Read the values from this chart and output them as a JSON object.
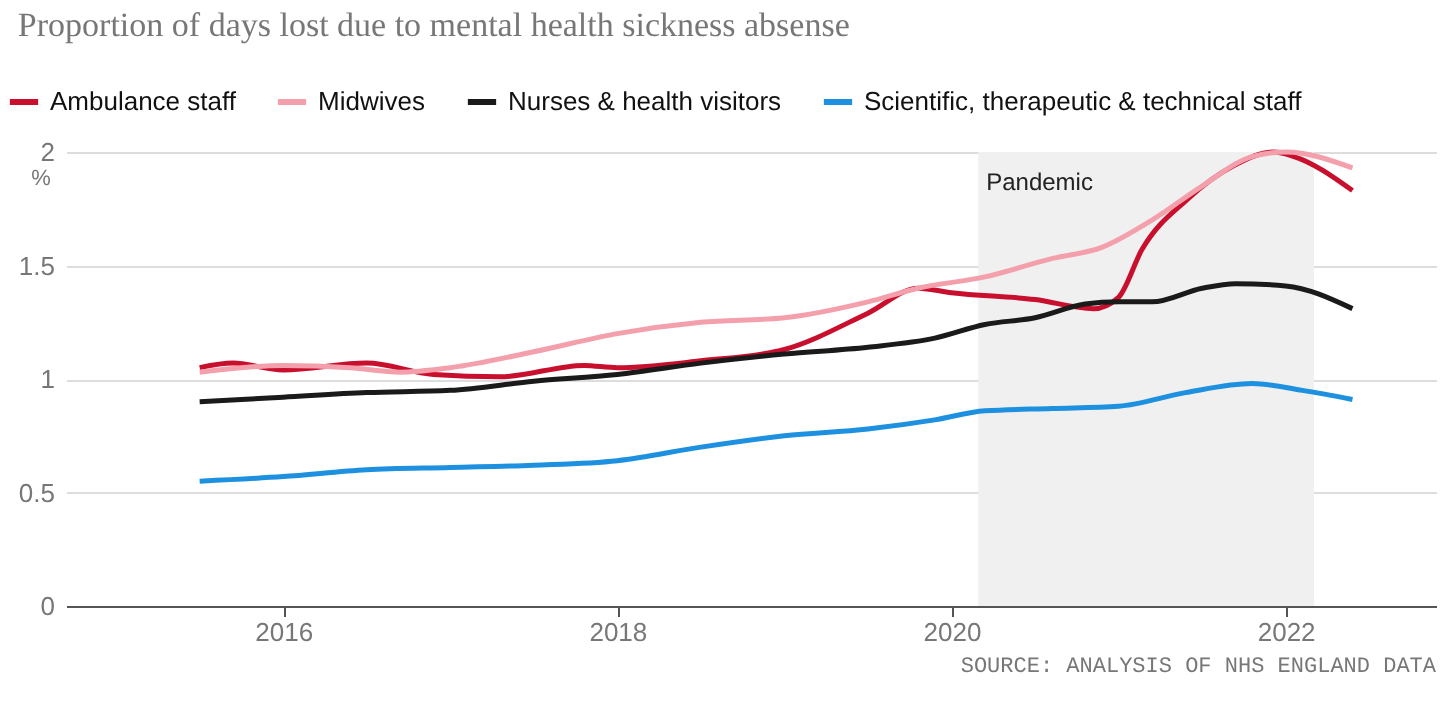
{
  "chart_data": {
    "type": "line",
    "title": "Proportion of days lost due to mental health sickness absense",
    "ylabel": "%",
    "xlim": [
      2014.7,
      2022.9
    ],
    "xticks": [
      2016,
      2018,
      2020,
      2022
    ],
    "ylim": [
      0,
      2
    ],
    "yticks": [
      0,
      0.5,
      1,
      1.5,
      2
    ],
    "grid": "y",
    "legend": "top left",
    "line_style": "solid",
    "marker": "none",
    "bands": [
      {
        "axis": "x",
        "from": 2020.16,
        "to": 2022.17,
        "label": "Pandemic",
        "color": "#f0f0f0"
      }
    ],
    "annotations": [
      "SOURCE: ANALYSIS OF NHS ENGLAND DATA"
    ],
    "series": [
      {
        "name": "Ambulance staff",
        "color": "#c8102e",
        "x": [
          2015.5,
          2015.7,
          2016,
          2016.5,
          2016.9,
          2017.3,
          2017.8,
          2018,
          2018.5,
          2019,
          2019.5,
          2019.8,
          2020,
          2020.5,
          2020.85,
          2021,
          2021.14,
          2021.41,
          2021.69,
          2021.93,
          2022.05,
          2022.4
        ],
        "values": [
          1.05,
          1.07,
          1.04,
          1.07,
          1.02,
          1.01,
          1.06,
          1.05,
          1.08,
          1.13,
          1.29,
          1.4,
          1.38,
          1.35,
          1.31,
          1.36,
          1.57,
          1.79,
          1.94,
          2.0,
          1.98,
          1.83
        ]
      },
      {
        "name": "Midwives",
        "color": "#f4a0ac",
        "x": [
          2015.5,
          2016,
          2016.4,
          2016.7,
          2017,
          2017.5,
          2018,
          2018.5,
          2019,
          2019.5,
          2019.8,
          2020.2,
          2020.6,
          2020.9,
          2021.2,
          2021.5,
          2021.8,
          2022,
          2022.4
        ],
        "values": [
          1.03,
          1.06,
          1.05,
          1.03,
          1.05,
          1.12,
          1.2,
          1.25,
          1.27,
          1.34,
          1.4,
          1.45,
          1.53,
          1.58,
          1.7,
          1.85,
          1.98,
          2.0,
          1.93
        ]
      },
      {
        "name": "Nurses & health visitors",
        "color": "#1a1a1a",
        "x": [
          2015.5,
          2016,
          2016.5,
          2017,
          2017.5,
          2018,
          2018.5,
          2019,
          2019.5,
          2019.9,
          2020.2,
          2020.5,
          2020.8,
          2021,
          2021.2,
          2021.5,
          2021.7,
          2022,
          2022.4
        ],
        "values": [
          0.9,
          0.92,
          0.94,
          0.95,
          0.99,
          1.02,
          1.07,
          1.11,
          1.14,
          1.18,
          1.24,
          1.27,
          1.33,
          1.34,
          1.34,
          1.4,
          1.42,
          1.41,
          1.31
        ]
      },
      {
        "name": "Scientific, therapeutic & technical staff",
        "color": "#1e90e0",
        "x": [
          2015.5,
          2016,
          2016.5,
          2017,
          2017.5,
          2018,
          2018.5,
          2019,
          2019.5,
          2019.9,
          2020.2,
          2020.6,
          2021,
          2021.4,
          2021.8,
          2022.1,
          2022.4
        ],
        "values": [
          0.55,
          0.57,
          0.6,
          0.61,
          0.62,
          0.64,
          0.7,
          0.75,
          0.78,
          0.82,
          0.86,
          0.87,
          0.88,
          0.94,
          0.98,
          0.95,
          0.91
        ]
      }
    ]
  }
}
